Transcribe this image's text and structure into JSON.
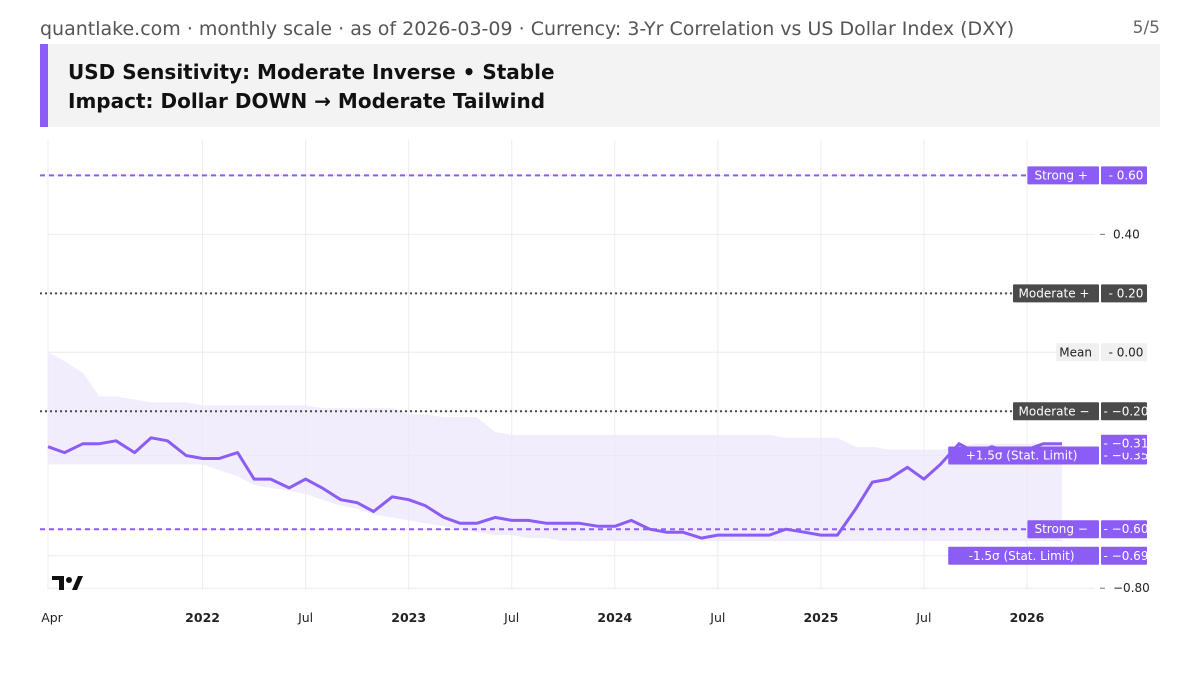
{
  "header": {
    "title": "quantlake.com · monthly scale · as of 2026-03-09 · Currency: 3-Yr Correlation vs US Dollar Index (DXY)",
    "page": "5/5"
  },
  "banner": {
    "line1": "USD Sensitivity: Moderate Inverse • Stable",
    "line2": "Impact: Dollar DOWN → Moderate Tailwind"
  },
  "colors": {
    "accent": "#8b5cf6",
    "line": "#8b5cf6",
    "band": "#ede7fb",
    "dark_tag": "#4a4a4a",
    "grid": "#ececec"
  },
  "chart_data": {
    "type": "line",
    "title": "3-Yr Correlation vs US Dollar Index (DXY)",
    "x_ticks": [
      {
        "label": "Apr",
        "t": 2021.25,
        "bold": false
      },
      {
        "label": "2022",
        "t": 2022.0,
        "bold": true
      },
      {
        "label": "Jul",
        "t": 2022.5,
        "bold": false
      },
      {
        "label": "2023",
        "t": 2023.0,
        "bold": true
      },
      {
        "label": "Jul",
        "t": 2023.5,
        "bold": false
      },
      {
        "label": "2024",
        "t": 2024.0,
        "bold": true
      },
      {
        "label": "Jul",
        "t": 2024.5,
        "bold": false
      },
      {
        "label": "2025",
        "t": 2025.0,
        "bold": true
      },
      {
        "label": "Jul",
        "t": 2025.5,
        "bold": false
      },
      {
        "label": "2026",
        "t": 2026.0,
        "bold": true
      }
    ],
    "y_ticks": [
      {
        "label": "0.40",
        "value": 0.4
      },
      {
        "label": "−0.80",
        "value": -0.8
      }
    ],
    "xlim": [
      2021.25,
      2026.33
    ],
    "ylim": [
      -0.84,
      0.72
    ],
    "reference_lines": [
      {
        "label": "Strong +",
        "value_label": "0.60",
        "value": 0.6,
        "style": "dashed",
        "color": "#8b5cf6"
      },
      {
        "label": "Moderate +",
        "value_label": "0.20",
        "value": 0.2,
        "style": "dotted",
        "color": "#4a4a4a"
      },
      {
        "label": "Mean",
        "value_label": "0.00",
        "value": 0.0,
        "style": "none",
        "color": "#f0f0f0"
      },
      {
        "label": "Moderate −",
        "value_label": "−0.20",
        "value": -0.2,
        "style": "dotted",
        "color": "#4a4a4a"
      },
      {
        "label": "+1.5σ (Stat. Limit)",
        "value_label": "−0.35",
        "value": -0.35,
        "style": "none",
        "color": "#8b5cf6"
      },
      {
        "label": "Strong −",
        "value_label": "−0.60",
        "value": -0.6,
        "style": "dashed",
        "color": "#8b5cf6"
      },
      {
        "label": "-1.5σ (Stat. Limit)",
        "value_label": "−0.69",
        "value": -0.69,
        "style": "none",
        "color": "#8b5cf6"
      }
    ],
    "current": {
      "value": -0.31,
      "label": "−0.31"
    },
    "series": [
      {
        "name": "3-Yr Correlation",
        "t": [
          2021.25,
          2021.33,
          2021.42,
          2021.5,
          2021.58,
          2021.67,
          2021.75,
          2021.83,
          2021.92,
          2022.0,
          2022.08,
          2022.17,
          2022.25,
          2022.33,
          2022.42,
          2022.5,
          2022.58,
          2022.67,
          2022.75,
          2022.83,
          2022.92,
          2023.0,
          2023.08,
          2023.17,
          2023.25,
          2023.33,
          2023.42,
          2023.5,
          2023.58,
          2023.67,
          2023.75,
          2023.83,
          2023.92,
          2024.0,
          2024.08,
          2024.17,
          2024.25,
          2024.33,
          2024.42,
          2024.5,
          2024.58,
          2024.67,
          2024.75,
          2024.83,
          2024.92,
          2025.0,
          2025.08,
          2025.17,
          2025.25,
          2025.33,
          2025.42,
          2025.5,
          2025.58,
          2025.67,
          2025.75,
          2025.83,
          2025.92,
          2026.0,
          2026.08,
          2026.17
        ],
        "values": [
          -0.32,
          -0.34,
          -0.31,
          -0.31,
          -0.3,
          -0.34,
          -0.29,
          -0.3,
          -0.35,
          -0.36,
          -0.36,
          -0.34,
          -0.43,
          -0.43,
          -0.46,
          -0.43,
          -0.46,
          -0.5,
          -0.51,
          -0.54,
          -0.49,
          -0.5,
          -0.52,
          -0.56,
          -0.58,
          -0.58,
          -0.56,
          -0.57,
          -0.57,
          -0.58,
          -0.58,
          -0.58,
          -0.59,
          -0.59,
          -0.57,
          -0.6,
          -0.61,
          -0.61,
          -0.63,
          -0.62,
          -0.62,
          -0.62,
          -0.62,
          -0.6,
          -0.61,
          -0.62,
          -0.62,
          -0.53,
          -0.44,
          -0.43,
          -0.39,
          -0.43,
          -0.38,
          -0.31,
          -0.34,
          -0.32,
          -0.34,
          -0.33,
          -0.31,
          -0.31
        ]
      }
    ],
    "band": {
      "name": "±1.5σ statistical range",
      "t": [
        2021.25,
        2021.33,
        2021.42,
        2021.5,
        2021.58,
        2021.67,
        2021.75,
        2021.83,
        2021.92,
        2022.0,
        2022.08,
        2022.17,
        2022.25,
        2022.33,
        2022.42,
        2022.5,
        2022.58,
        2022.67,
        2022.75,
        2022.83,
        2022.92,
        2023.0,
        2023.08,
        2023.17,
        2023.25,
        2023.33,
        2023.42,
        2023.5,
        2023.58,
        2023.67,
        2023.75,
        2023.83,
        2023.92,
        2024.0,
        2024.08,
        2024.17,
        2024.25,
        2024.33,
        2024.42,
        2024.5,
        2024.58,
        2024.67,
        2024.75,
        2024.83,
        2024.92,
        2025.0,
        2025.08,
        2025.17,
        2025.25,
        2025.33,
        2025.42,
        2025.5,
        2025.58,
        2025.67,
        2025.75,
        2025.83,
        2025.92,
        2026.0,
        2026.08,
        2026.17
      ],
      "upper": [
        0.0,
        -0.03,
        -0.07,
        -0.15,
        -0.15,
        -0.16,
        -0.17,
        -0.17,
        -0.17,
        -0.18,
        -0.18,
        -0.18,
        -0.18,
        -0.18,
        -0.18,
        -0.18,
        -0.19,
        -0.19,
        -0.19,
        -0.19,
        -0.19,
        -0.21,
        -0.21,
        -0.22,
        -0.22,
        -0.22,
        -0.27,
        -0.28,
        -0.28,
        -0.28,
        -0.28,
        -0.28,
        -0.28,
        -0.28,
        -0.28,
        -0.28,
        -0.28,
        -0.28,
        -0.28,
        -0.28,
        -0.28,
        -0.28,
        -0.28,
        -0.29,
        -0.29,
        -0.29,
        -0.29,
        -0.32,
        -0.32,
        -0.33,
        -0.33,
        -0.33,
        -0.33,
        -0.32,
        -0.31,
        -0.31,
        -0.31,
        -0.31,
        -0.31,
        -0.31
      ],
      "lower": [
        -0.38,
        -0.38,
        -0.38,
        -0.38,
        -0.38,
        -0.38,
        -0.38,
        -0.38,
        -0.38,
        -0.38,
        -0.4,
        -0.42,
        -0.45,
        -0.46,
        -0.47,
        -0.48,
        -0.5,
        -0.52,
        -0.53,
        -0.55,
        -0.56,
        -0.57,
        -0.58,
        -0.59,
        -0.6,
        -0.61,
        -0.62,
        -0.62,
        -0.63,
        -0.63,
        -0.64,
        -0.64,
        -0.64,
        -0.64,
        -0.64,
        -0.64,
        -0.64,
        -0.64,
        -0.64,
        -0.64,
        -0.64,
        -0.64,
        -0.64,
        -0.64,
        -0.64,
        -0.64,
        -0.64,
        -0.64,
        -0.64,
        -0.64,
        -0.64,
        -0.64,
        -0.64,
        -0.64,
        -0.64,
        -0.64,
        -0.64,
        -0.64,
        -0.64,
        -0.64
      ]
    }
  }
}
